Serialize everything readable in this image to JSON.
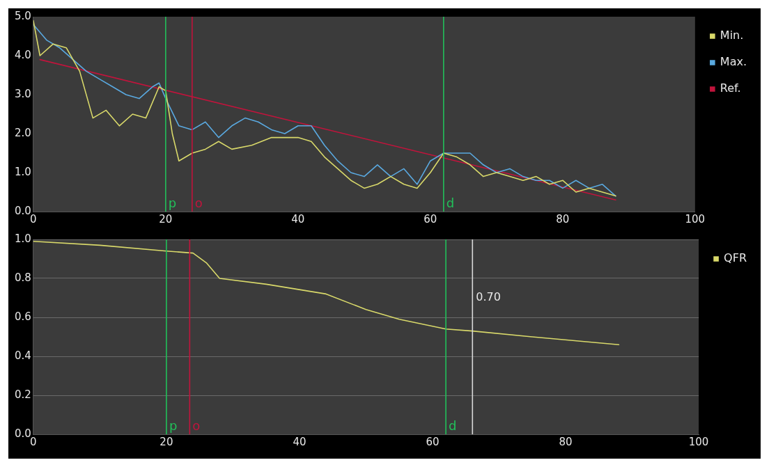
{
  "chart_data": [
    {
      "type": "line",
      "xlim": [
        0,
        100
      ],
      "xticks": [
        0,
        20,
        40,
        60,
        80,
        100
      ],
      "ylim": [
        0,
        5
      ],
      "yticks": [
        {
          "value": 0,
          "label": "0.0"
        },
        {
          "value": 1,
          "label": "1.0"
        },
        {
          "value": 2,
          "label": "2.0"
        },
        {
          "value": 3,
          "label": "3.0"
        },
        {
          "value": 4,
          "label": "4.0"
        },
        {
          "value": 5,
          "label": "5.0"
        }
      ],
      "grid": false,
      "legend": "right",
      "marker": "none",
      "series": [
        {
          "name": "Min.",
          "color": "#d9d96a",
          "x": [
            0,
            1,
            3,
            5,
            7,
            9,
            11,
            13,
            15,
            17,
            19,
            20,
            21,
            22,
            24,
            26,
            28,
            30,
            33,
            36,
            38,
            40,
            42,
            44,
            46,
            48,
            50,
            52,
            54,
            56,
            58,
            60,
            62,
            64,
            66,
            68,
            70,
            72,
            74,
            76,
            78,
            80,
            82,
            84,
            86,
            88
          ],
          "values": [
            4.9,
            4.0,
            4.3,
            4.2,
            3.6,
            2.4,
            2.6,
            2.2,
            2.5,
            2.4,
            3.2,
            3.1,
            2.0,
            1.3,
            1.5,
            1.6,
            1.8,
            1.6,
            1.7,
            1.9,
            1.9,
            1.9,
            1.8,
            1.4,
            1.1,
            0.8,
            0.6,
            0.7,
            0.9,
            0.7,
            0.6,
            1.0,
            1.5,
            1.4,
            1.2,
            0.9,
            1.0,
            0.9,
            0.8,
            0.9,
            0.7,
            0.8,
            0.5,
            0.6,
            0.5,
            0.4
          ]
        },
        {
          "name": "Max.",
          "color": "#5aa9e0",
          "x": [
            0,
            2,
            4,
            6,
            8,
            10,
            12,
            14,
            16,
            18,
            19,
            20,
            22,
            24,
            26,
            28,
            30,
            32,
            34,
            36,
            38,
            40,
            42,
            44,
            46,
            48,
            50,
            52,
            54,
            56,
            58,
            60,
            62,
            64,
            66,
            68,
            70,
            72,
            74,
            76,
            78,
            80,
            82,
            84,
            86,
            88
          ],
          "values": [
            4.8,
            4.4,
            4.2,
            3.9,
            3.6,
            3.4,
            3.2,
            3.0,
            2.9,
            3.2,
            3.3,
            2.9,
            2.2,
            2.1,
            2.3,
            1.9,
            2.2,
            2.4,
            2.3,
            2.1,
            2.0,
            2.2,
            2.2,
            1.7,
            1.3,
            1.0,
            0.9,
            1.2,
            0.9,
            1.1,
            0.7,
            1.3,
            1.5,
            1.5,
            1.5,
            1.2,
            1.0,
            1.1,
            0.9,
            0.8,
            0.8,
            0.6,
            0.8,
            0.6,
            0.7,
            0.4
          ]
        },
        {
          "name": "Ref.",
          "color": "#c0143c",
          "x": [
            1,
            88
          ],
          "values": [
            3.9,
            0.3
          ]
        }
      ],
      "ref_lines": [
        {
          "axis": "x",
          "value": 20,
          "label": "p",
          "color": "#22c05a"
        },
        {
          "axis": "x",
          "value": 24,
          "label": "o",
          "color": "#c0143c"
        },
        {
          "axis": "x",
          "value": 62,
          "label": "d",
          "color": "#22c05a"
        }
      ]
    },
    {
      "type": "line",
      "xlim": [
        0,
        100
      ],
      "xticks": [
        0,
        20,
        40,
        60,
        80,
        100
      ],
      "ylim": [
        0,
        1
      ],
      "yticks": [
        {
          "value": 0,
          "label": "0.0"
        },
        {
          "value": 0.2,
          "label": "0.2"
        },
        {
          "value": 0.4,
          "label": "0.4"
        },
        {
          "value": 0.6,
          "label": "0.6"
        },
        {
          "value": 0.8,
          "label": "0.8"
        },
        {
          "value": 1,
          "label": "1.0"
        }
      ],
      "grid": "y",
      "legend": "right",
      "marker": "none",
      "series": [
        {
          "name": "QFR",
          "color": "#d9d96a",
          "x": [
            0,
            10,
            20,
            24,
            26,
            28,
            35,
            44,
            50,
            55,
            62,
            66,
            75,
            88
          ],
          "values": [
            0.99,
            0.97,
            0.94,
            0.93,
            0.88,
            0.8,
            0.77,
            0.72,
            0.64,
            0.59,
            0.54,
            0.53,
            0.5,
            0.46
          ]
        }
      ],
      "ref_lines": [
        {
          "axis": "x",
          "value": 20,
          "label": "p",
          "color": "#22c05a"
        },
        {
          "axis": "x",
          "value": 23.5,
          "label": "o",
          "color": "#c0143c"
        },
        {
          "axis": "x",
          "value": 62,
          "label": "d",
          "color": "#22c05a"
        },
        {
          "axis": "x",
          "value": 66,
          "color": "#d8d8d8"
        }
      ],
      "annotations": [
        {
          "text": "0.70",
          "x": 66,
          "y": 0.7
        }
      ]
    }
  ]
}
